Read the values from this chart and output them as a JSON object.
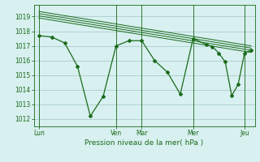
{
  "bg_color": "#d8f0f0",
  "grid_color": "#aacccc",
  "line_color": "#1a6b1a",
  "marker_color": "#1a6b1a",
  "xlabel": "Pression niveau de la mer( hPa )",
  "ylim": [
    1011.5,
    1019.8
  ],
  "yticks": [
    1012,
    1013,
    1014,
    1015,
    1016,
    1017,
    1018,
    1019
  ],
  "xtick_labels": [
    "Lun",
    "Ven",
    "Mar",
    "Mer",
    "Jeu"
  ],
  "xtick_positions": [
    0,
    3,
    4,
    6,
    8
  ],
  "x_total": 8,
  "main_series": [
    [
      0,
      1017.7
    ],
    [
      0.5,
      1017.6
    ],
    [
      1.0,
      1017.2
    ],
    [
      1.5,
      1015.6
    ],
    [
      2.0,
      1012.2
    ],
    [
      2.5,
      1013.55
    ],
    [
      3.0,
      1017.0
    ],
    [
      3.5,
      1017.35
    ],
    [
      4.0,
      1017.35
    ],
    [
      4.5,
      1016.0
    ],
    [
      5.0,
      1015.2
    ],
    [
      5.5,
      1013.7
    ],
    [
      6.0,
      1017.5
    ],
    [
      6.5,
      1017.1
    ],
    [
      6.75,
      1016.95
    ],
    [
      7.0,
      1016.5
    ],
    [
      7.25,
      1015.9
    ],
    [
      7.5,
      1013.6
    ],
    [
      7.75,
      1014.35
    ],
    [
      8.0,
      1016.5
    ],
    [
      8.25,
      1016.7
    ]
  ],
  "band_series": [
    [
      [
        0,
        1019.35
      ],
      [
        8.25,
        1017.0
      ]
    ],
    [
      [
        0,
        1019.2
      ],
      [
        8.25,
        1016.85
      ]
    ],
    [
      [
        0,
        1019.05
      ],
      [
        8.25,
        1016.7
      ]
    ],
    [
      [
        0,
        1018.9
      ],
      [
        8.25,
        1016.55
      ]
    ]
  ],
  "figsize": [
    3.2,
    2.0
  ],
  "dpi": 100
}
